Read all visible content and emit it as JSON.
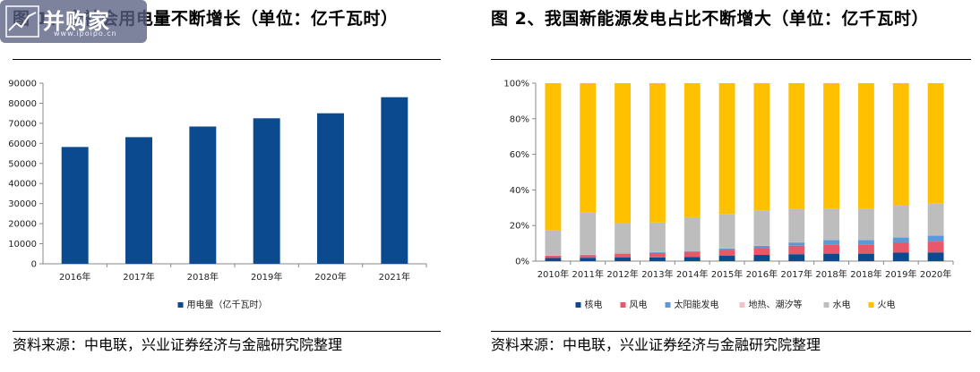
{
  "watermark": {
    "name": "并购家",
    "url": "www.ipoipo.cn"
  },
  "left": {
    "title": "图 1、全社会用电量不断增长（单位：亿千瓦时）",
    "source": "资料来源：中电联，兴业证券经济与金融研究院整理"
  },
  "right": {
    "title": "图 2、我国新能源发电占比不断增大（单位：亿千瓦时）",
    "source": "资料来源：中电联，兴业证券经济与金融研究院整理"
  },
  "chart_data": [
    {
      "type": "bar",
      "title": "",
      "categories": [
        "2016年",
        "2017年",
        "2018年",
        "2019年",
        "2020年",
        "2021年"
      ],
      "series": [
        {
          "name": "用电量（亿千瓦时）",
          "values": [
            58200,
            63100,
            68400,
            72500,
            75000,
            83000
          ]
        }
      ],
      "ylim": [
        0,
        90000
      ],
      "yticks": [
        "0",
        "10000",
        "20000",
        "30000",
        "40000",
        "50000",
        "60000",
        "70000",
        "80000",
        "90000"
      ],
      "legend": "bottom",
      "grid": false,
      "colors": [
        "#0b4a8f"
      ]
    },
    {
      "type": "bar",
      "stacked": true,
      "title": "",
      "categories": [
        "2010年",
        "2011年",
        "2012年",
        "2013年",
        "2014年",
        "2015年",
        "2016年",
        "2017年",
        "2018年",
        "2018年",
        "2019年",
        "2020年"
      ],
      "series": [
        {
          "name": "核电",
          "values": [
            1.8,
            1.9,
            2.0,
            2.1,
            2.3,
            3.0,
            3.5,
            3.9,
            4.2,
            4.2,
            4.8,
            4.9
          ]
        },
        {
          "name": "风电",
          "values": [
            1.2,
            1.5,
            2.0,
            2.5,
            2.8,
            3.3,
            4.0,
            4.8,
            5.2,
            5.2,
            5.5,
            6.1
          ]
        },
        {
          "name": "太阳能发电",
          "values": [
            0.1,
            0.2,
            0.3,
            0.5,
            0.6,
            0.8,
            1.1,
            1.8,
            2.5,
            2.5,
            3.0,
            3.4
          ]
        },
        {
          "name": "地热、潮汐等",
          "values": [
            0.1,
            0.1,
            0.1,
            0.1,
            0.1,
            0.1,
            0.1,
            0.1,
            0.1,
            0.1,
            0.1,
            0.1
          ]
        },
        {
          "name": "水电",
          "values": [
            14.0,
            23.5,
            17.0,
            16.5,
            18.9,
            19.3,
            19.8,
            18.6,
            17.5,
            17.5,
            17.8,
            17.8
          ]
        },
        {
          "name": "火电",
          "values": [
            82.8,
            72.8,
            78.6,
            78.3,
            75.3,
            73.5,
            71.5,
            70.8,
            70.5,
            70.5,
            68.8,
            67.7
          ]
        }
      ],
      "ylim": [
        0,
        100
      ],
      "yticks": [
        "0%",
        "20%",
        "40%",
        "60%",
        "80%",
        "100%"
      ],
      "legend": "bottom",
      "grid": false,
      "colors": [
        "#0b4a8f",
        "#e8576a",
        "#5b9bd5",
        "#f4c0c8",
        "#bdbdbd",
        "#ffc000"
      ]
    }
  ]
}
